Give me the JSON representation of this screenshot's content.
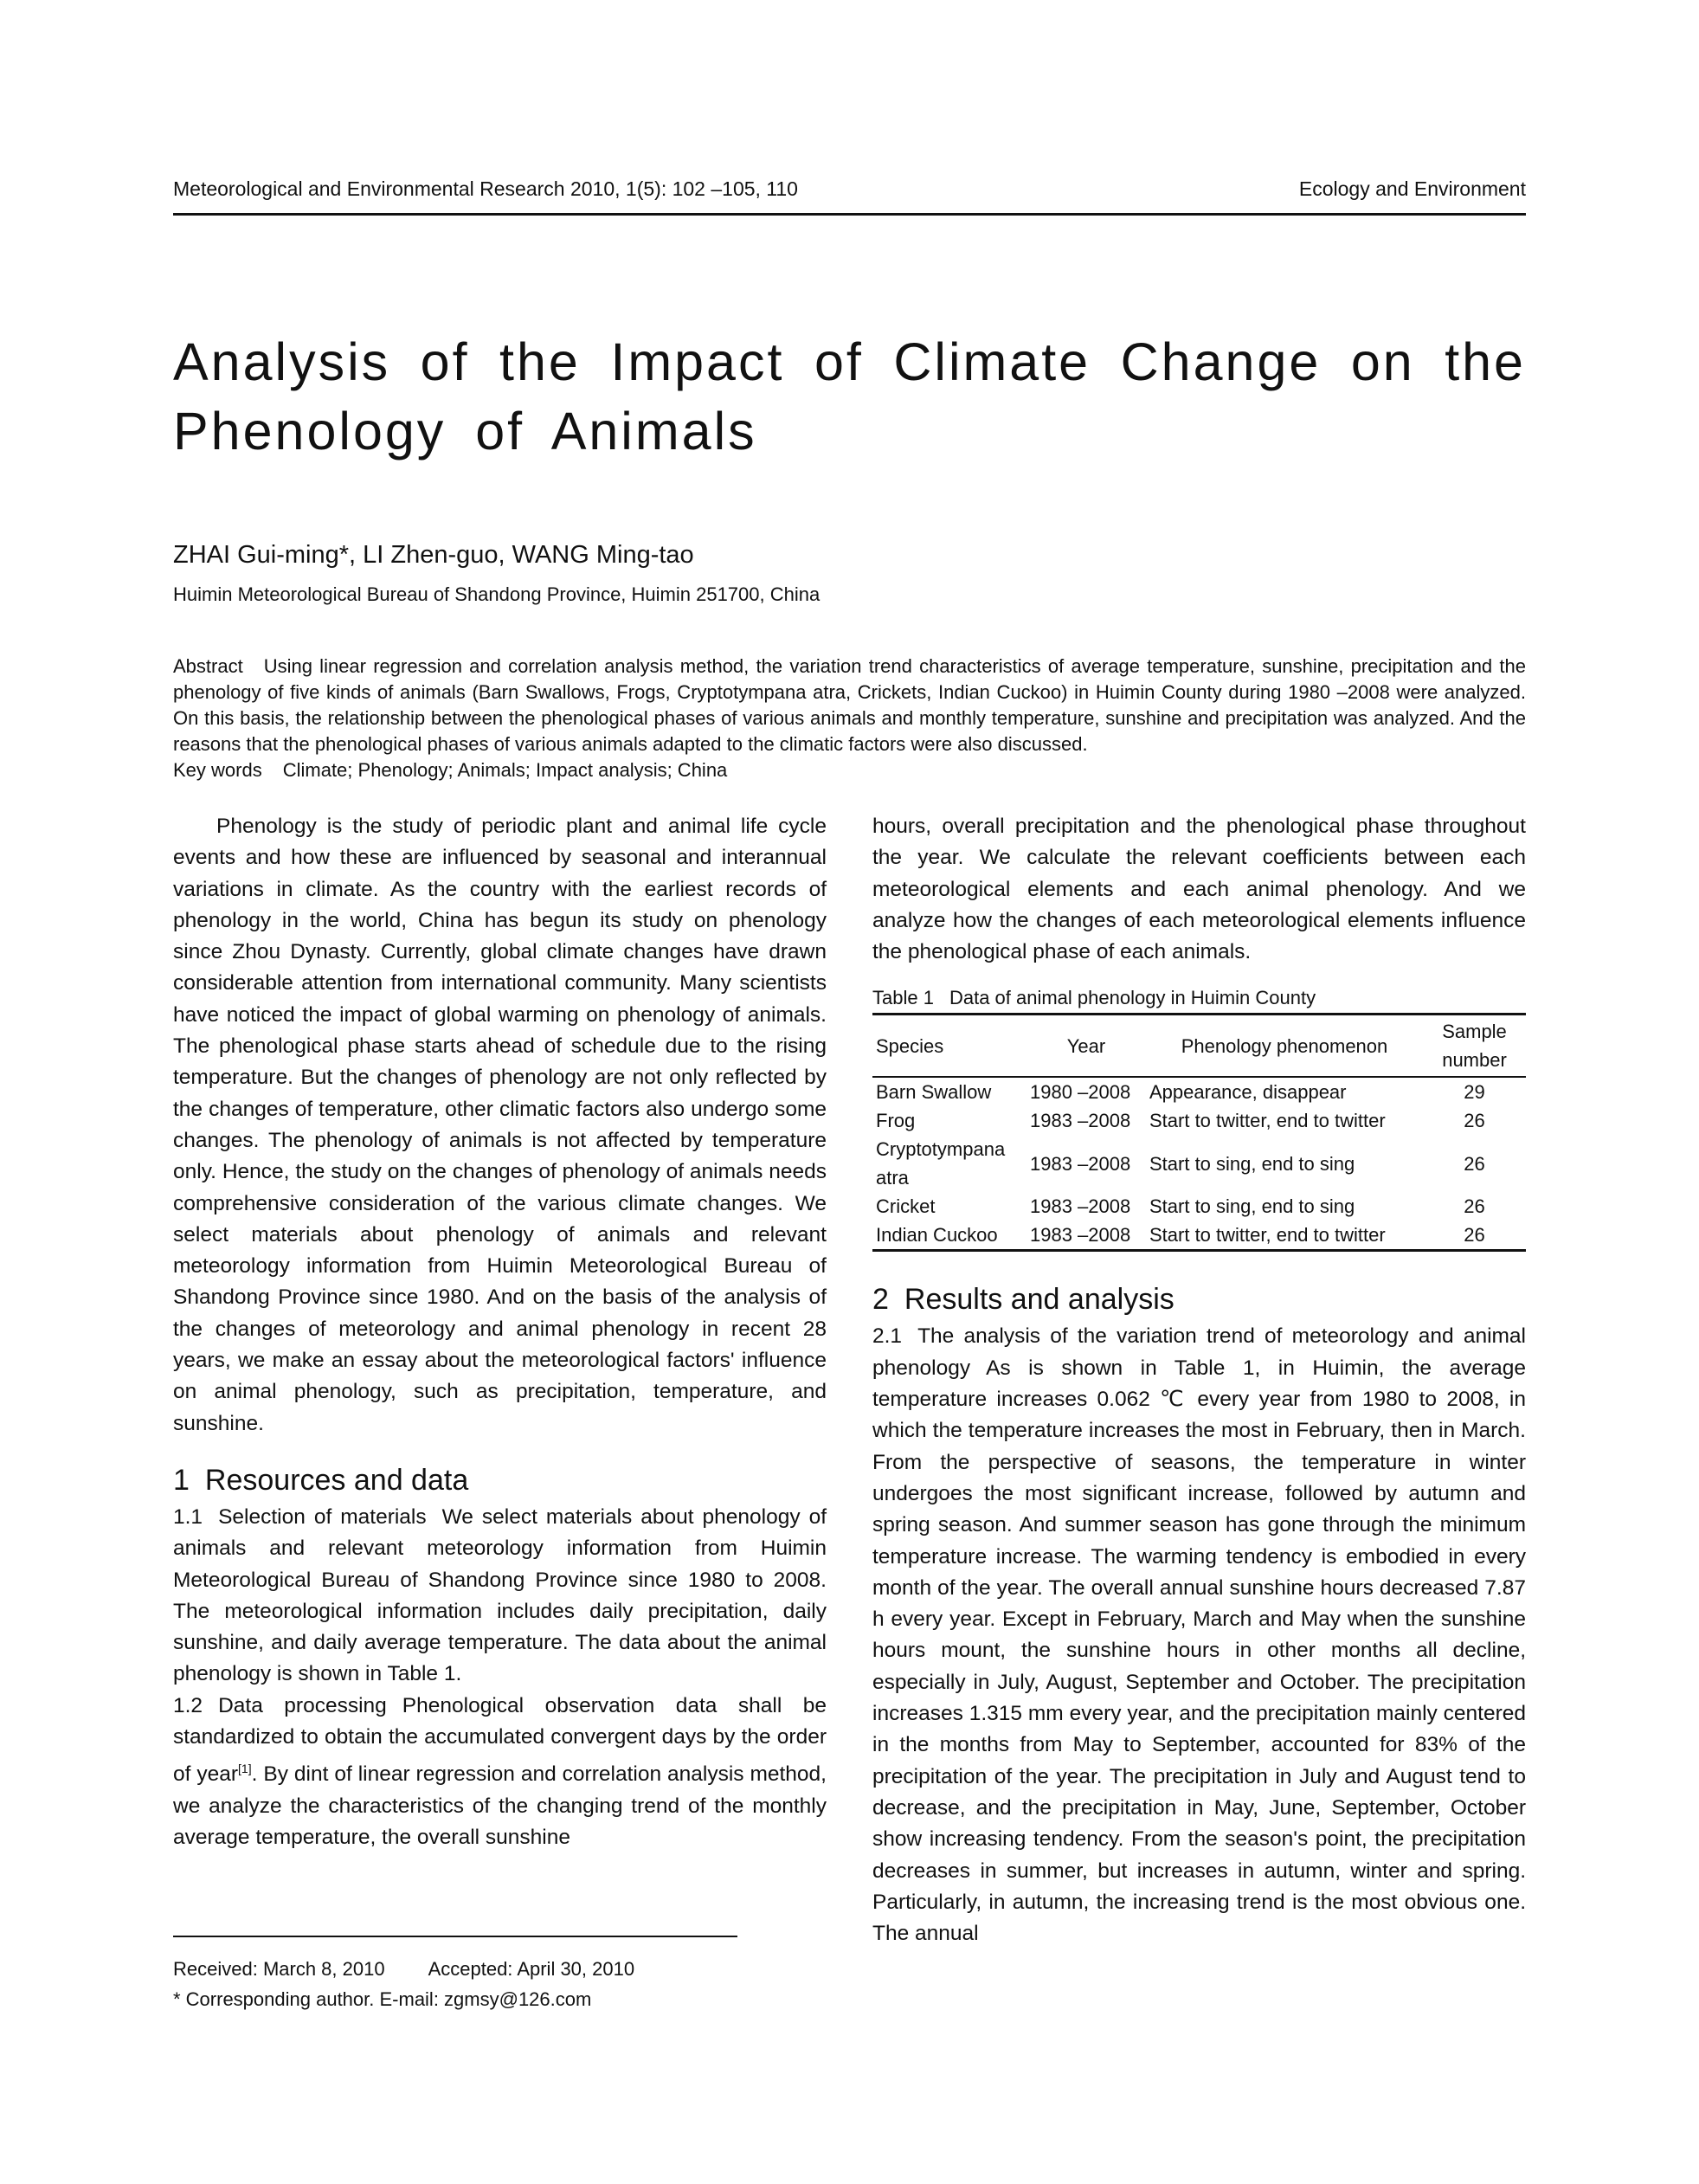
{
  "header": {
    "journal": "Meteorological and Environmental Research 2010, 1(5): 102 –105, 110",
    "section": "Ecology and Environment"
  },
  "title": "Analysis of the Impact of Climate Change on the Phenology of Animals",
  "authors": "ZHAI Gui-ming*, LI Zhen-guo, WANG Ming-tao",
  "affiliation": "Huimin Meteorological Bureau of Shandong Province, Huimin 251700, China",
  "abstract": {
    "label": "Abstract",
    "text": "Using linear regression and correlation analysis method, the variation trend characteristics of average temperature, sunshine, precipitation and the phenology of five kinds of animals (Barn Swallows, Frogs, Cryptotympana atra, Crickets, Indian Cuckoo) in Huimin County during 1980 –2008 were analyzed. On this basis, the relationship between the phenological phases of various animals and monthly temperature, sunshine and precipitation was analyzed. And the reasons that the phenological phases of various animals adapted to the climatic factors were also discussed."
  },
  "keywords": {
    "label": "Key words",
    "text": "Climate; Phenology; Animals; Impact analysis; China"
  },
  "left": {
    "intro": "Phenology is the study of periodic plant and animal life cycle events and how these are influenced by seasonal and interannual variations in climate. As the country with the earliest records of phenology in the world, China has begun its study on phenology since Zhou Dynasty. Currently, global climate changes have drawn considerable attention from international community. Many scientists have noticed the impact of global warming on phenology of animals. The phenological phase starts ahead of schedule due to the rising temperature. But the changes of phenology are not only reflected by the changes of temperature, other climatic factors also undergo some changes. The phenology of animals is not affected by temperature only. Hence, the study on the changes of phenology of animals needs comprehensive consideration of the various climate changes. We select materials about phenology of animals and relevant meteorology information from Huimin Meteorological Bureau of Shandong Province since 1980. And on the basis of the analysis of the changes of meteorology and animal phenology in recent 28 years, we make an essay about the meteorological factors' influence on animal phenology, such as precipitation, temperature, and sunshine.",
    "section1": {
      "num": "1",
      "title": "Resources and data"
    },
    "s11": {
      "num": "1.1",
      "title": "Selection of materials",
      "text": "We select materials about phenology of animals and relevant meteorology information from Huimin Meteorological Bureau of Shandong Province since 1980 to 2008. The meteorological information includes daily precipitation, daily sunshine, and daily average temperature. The data about the animal phenology is shown in Table 1."
    },
    "s12": {
      "num": "1.2",
      "title": "Data processing",
      "text": "Phenological observation data shall be standardized to obtain the accumulated convergent days by the order of year",
      "ref": "[1]",
      "text2": ". By dint of linear regression and correlation analysis method, we analyze the characteristics of the changing trend of the monthly average temperature, the overall sunshine"
    }
  },
  "right": {
    "cont": "hours, overall precipitation and the phenological phase throughout the year. We calculate the relevant coefficients between each meteorological elements and each animal phenology. And we analyze how the changes of each meteorological elements influence the phenological phase of each animals.",
    "table": {
      "caption_label": "Table 1",
      "caption": "Data of animal phenology in Huimin County",
      "headers": [
        "Species",
        "Year",
        "Phenology phenomenon",
        "Sample number"
      ],
      "rows": [
        [
          "Barn Swallow",
          "1980 –2008",
          "Appearance, disappear",
          "29"
        ],
        [
          "Frog",
          "1983 –2008",
          "Start to twitter, end to twitter",
          "26"
        ],
        [
          "Cryptotympana atra",
          "1983 –2008",
          "Start to sing, end to sing",
          "26"
        ],
        [
          "Cricket",
          "1983 –2008",
          "Start to sing, end to sing",
          "26"
        ],
        [
          "Indian Cuckoo",
          "1983 –2008",
          "Start to twitter, end to twitter",
          "26"
        ]
      ]
    },
    "section2": {
      "num": "2",
      "title": "Results and analysis"
    },
    "s21": {
      "num": "2.1",
      "title": "The analysis of the variation trend of meteorology and animal phenology",
      "text": "As is shown in Table 1, in Huimin, the average temperature increases 0.062 ℃ every year from 1980 to 2008, in which the temperature increases the most in February, then in March. From the perspective of seasons, the temperature in winter undergoes the most significant increase, followed by autumn and spring season. And summer season has gone through the minimum temperature increase. The warming tendency is embodied in every month of the year. The overall annual sunshine hours decreased 7.87 h every year. Except in February, March and May when the sunshine hours mount, the sunshine hours in other months all decline, especially in July, August, September and October. The precipitation increases 1.315 mm every year, and the precipitation mainly centered in the months from May to September, accounted for 83% of the precipitation of the year. The precipitation in July and August tend to decrease, and the precipitation in May, June, September, October show increasing tendency. From the season's point, the precipitation decreases in summer, but increases in autumn, winter and spring. Particularly, in autumn, the increasing trend is the most obvious one. The annual"
    }
  },
  "footnote": {
    "received": "Received: March 8, 2010",
    "accepted": "Accepted: April 30, 2010",
    "corresponding": "* Corresponding author. E-mail: zgmsy@126.com"
  }
}
